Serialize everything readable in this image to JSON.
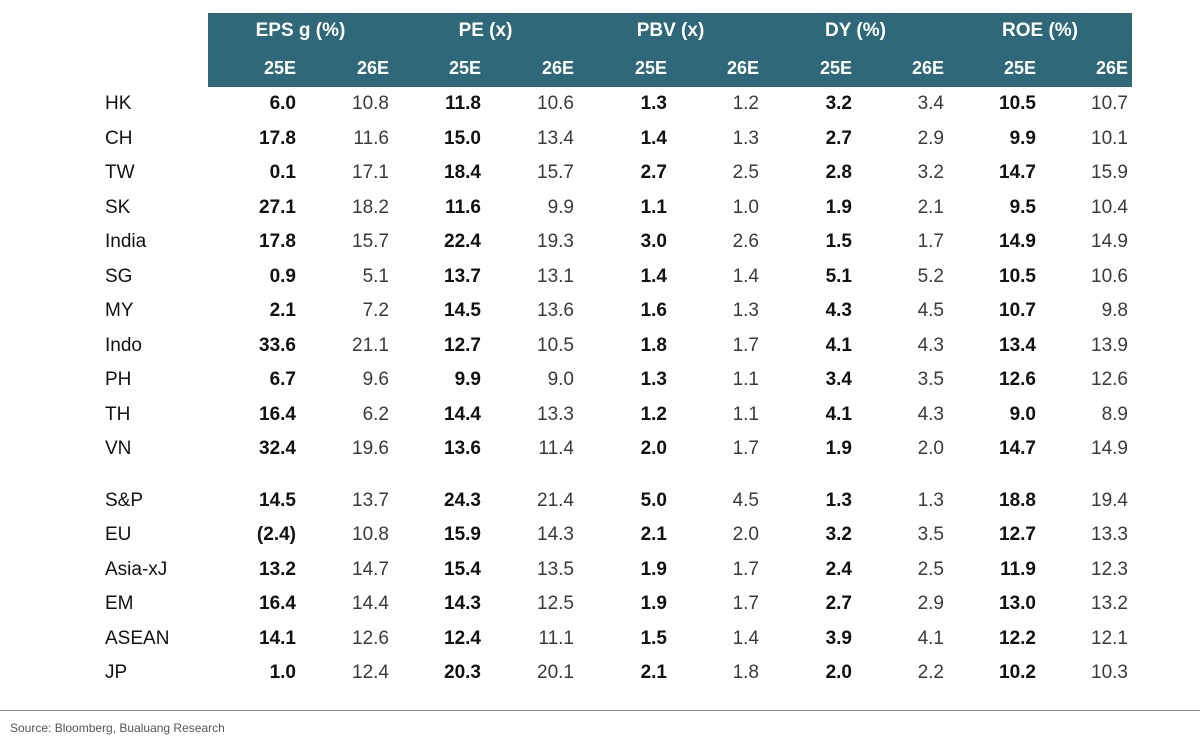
{
  "headers": {
    "groups": [
      "EPS g (%)",
      "PE (x)",
      "PBV (x)",
      "DY (%)",
      "ROE (%)"
    ],
    "years": [
      "25E",
      "26E"
    ]
  },
  "groups_main": [
    {
      "label": "HK",
      "values": [
        "6.0",
        "10.8",
        "11.8",
        "10.6",
        "1.3",
        "1.2",
        "3.2",
        "3.4",
        "10.5",
        "10.7"
      ]
    },
    {
      "label": "CH",
      "values": [
        "17.8",
        "11.6",
        "15.0",
        "13.4",
        "1.4",
        "1.3",
        "2.7",
        "2.9",
        "9.9",
        "10.1"
      ]
    },
    {
      "label": "TW",
      "values": [
        "0.1",
        "17.1",
        "18.4",
        "15.7",
        "2.7",
        "2.5",
        "2.8",
        "3.2",
        "14.7",
        "15.9"
      ]
    },
    {
      "label": "SK",
      "values": [
        "27.1",
        "18.2",
        "11.6",
        "9.9",
        "1.1",
        "1.0",
        "1.9",
        "2.1",
        "9.5",
        "10.4"
      ]
    },
    {
      "label": "India",
      "values": [
        "17.8",
        "15.7",
        "22.4",
        "19.3",
        "3.0",
        "2.6",
        "1.5",
        "1.7",
        "14.9",
        "14.9"
      ]
    },
    {
      "label": "SG",
      "values": [
        "0.9",
        "5.1",
        "13.7",
        "13.1",
        "1.4",
        "1.4",
        "5.1",
        "5.2",
        "10.5",
        "10.6"
      ]
    },
    {
      "label": "MY",
      "values": [
        "2.1",
        "7.2",
        "14.5",
        "13.6",
        "1.6",
        "1.3",
        "4.3",
        "4.5",
        "10.7",
        "9.8"
      ]
    },
    {
      "label": "Indo",
      "values": [
        "33.6",
        "21.1",
        "12.7",
        "10.5",
        "1.8",
        "1.7",
        "4.1",
        "4.3",
        "13.4",
        "13.9"
      ]
    },
    {
      "label": "PH",
      "values": [
        "6.7",
        "9.6",
        "9.9",
        "9.0",
        "1.3",
        "1.1",
        "3.4",
        "3.5",
        "12.6",
        "12.6"
      ]
    },
    {
      "label": "TH",
      "values": [
        "16.4",
        "6.2",
        "14.4",
        "13.3",
        "1.2",
        "1.1",
        "4.1",
        "4.3",
        "9.0",
        "8.9"
      ]
    },
    {
      "label": "VN",
      "values": [
        "32.4",
        "19.6",
        "13.6",
        "11.4",
        "2.0",
        "1.7",
        "1.9",
        "2.0",
        "14.7",
        "14.9"
      ]
    }
  ],
  "groups_global": [
    {
      "label": "S&P",
      "values": [
        "14.5",
        "13.7",
        "24.3",
        "21.4",
        "5.0",
        "4.5",
        "1.3",
        "1.3",
        "18.8",
        "19.4"
      ]
    },
    {
      "label": "EU",
      "values": [
        "(2.4)",
        "10.8",
        "15.9",
        "14.3",
        "2.1",
        "2.0",
        "3.2",
        "3.5",
        "12.7",
        "13.3"
      ]
    },
    {
      "label": "Asia-xJ",
      "values": [
        "13.2",
        "14.7",
        "15.4",
        "13.5",
        "1.9",
        "1.7",
        "2.4",
        "2.5",
        "11.9",
        "12.3"
      ]
    },
    {
      "label": "EM",
      "values": [
        "16.4",
        "14.4",
        "14.3",
        "12.5",
        "1.9",
        "1.7",
        "2.7",
        "2.9",
        "13.0",
        "13.2"
      ]
    },
    {
      "label": "ASEAN",
      "values": [
        "14.1",
        "12.6",
        "12.4",
        "11.1",
        "1.5",
        "1.4",
        "3.9",
        "4.1",
        "12.2",
        "12.1"
      ]
    },
    {
      "label": "JP",
      "values": [
        "1.0",
        "12.4",
        "20.3",
        "20.1",
        "2.1",
        "1.8",
        "2.0",
        "2.2",
        "10.2",
        "10.3"
      ]
    }
  ],
  "source": "Source: Bloomberg, Bualuang Research",
  "colors": {
    "header_bg": "#2f6878",
    "header_text": "#ffffff"
  }
}
